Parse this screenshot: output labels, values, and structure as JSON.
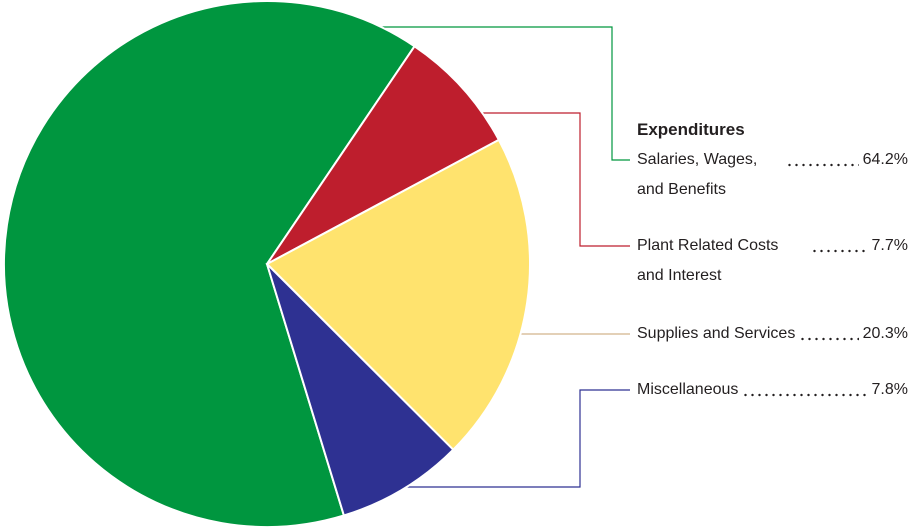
{
  "chart_data": {
    "type": "pie",
    "legend_title": "Expenditures",
    "categories": [
      "Salaries, Wages, and Benefits",
      "Plant Related Costs and Interest",
      "Supplies and Services",
      "Miscellaneous"
    ],
    "values": [
      64.2,
      7.7,
      20.3,
      7.8
    ],
    "value_labels": [
      "64.2%",
      "7.7%",
      "20.3%",
      "7.8%"
    ],
    "colors": [
      "#00963f",
      "#be1e2d",
      "#ffe36e",
      "#2e3192"
    ]
  }
}
